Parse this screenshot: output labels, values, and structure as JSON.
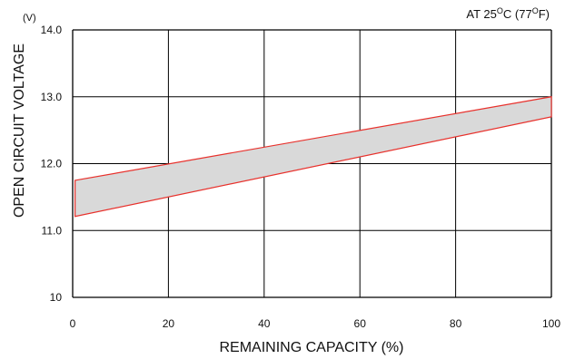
{
  "chart_data": {
    "type": "area",
    "xlabel": "REMAINING CAPACITY (%)",
    "ylabel": "OPEN CIRCUIT VOLTAGE",
    "y_unit": "(V)",
    "annotation": {
      "prefix": "AT 25",
      "sup1": "O",
      "mid": "C (77",
      "sup2": "O",
      "suffix": "F)"
    },
    "xlim": [
      0,
      100
    ],
    "ylim": [
      10,
      14
    ],
    "x_ticks": [
      0,
      20,
      40,
      60,
      80,
      100
    ],
    "x_tick_labels": [
      "0",
      "20",
      "40",
      "60",
      "80",
      "100"
    ],
    "y_ticks": [
      10,
      11,
      12,
      13,
      14
    ],
    "y_tick_labels": [
      "10",
      "11.0",
      "12.0",
      "13.0",
      "14.0"
    ],
    "grid": true,
    "band": {
      "x": [
        0.5,
        100
      ],
      "lower": [
        11.21,
        12.7
      ],
      "upper": [
        11.75,
        13.0
      ]
    },
    "colors": {
      "band_fill": "#d9d9d9",
      "band_edge": "#e8312c",
      "grid": "#000000"
    }
  }
}
